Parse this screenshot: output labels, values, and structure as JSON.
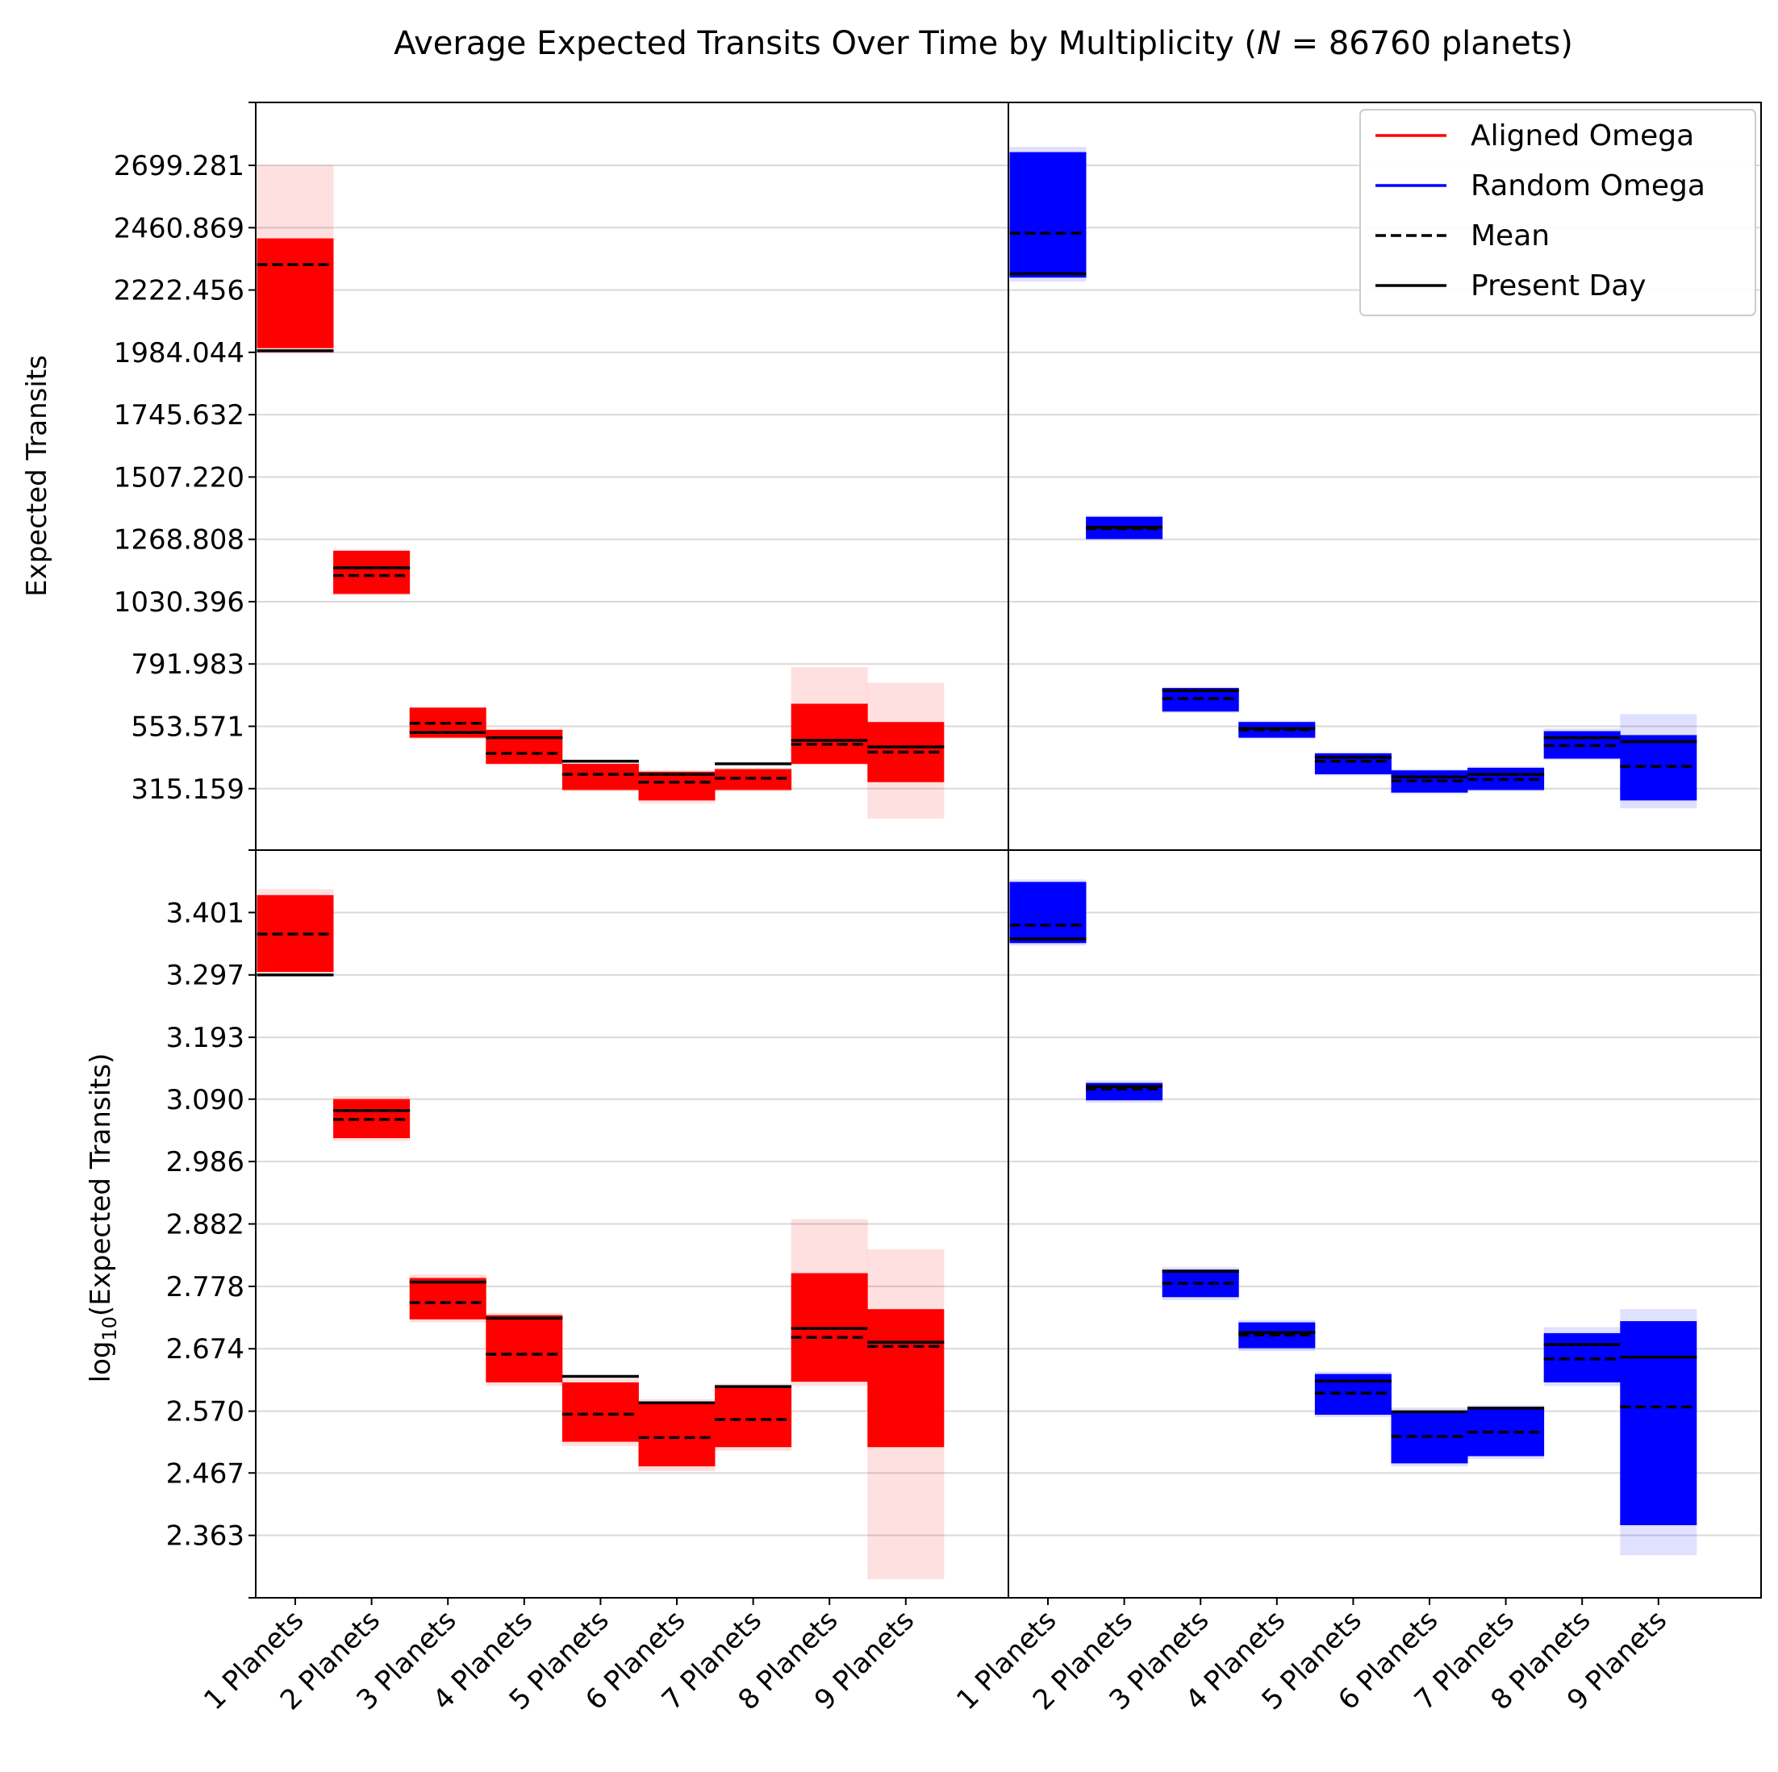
{
  "chart_data": {
    "type": "bar",
    "title_main": "Average Expected Transits Over Time by Multiplicity (",
    "title_n_symbol": "N",
    "title_n_rest": " = 86760 planets)",
    "categories": [
      "1 Planets",
      "2 Planets",
      "3 Planets",
      "4 Planets",
      "5 Planets",
      "6 Planets",
      "7 Planets",
      "8 Planets",
      "9 Planets"
    ],
    "legend": {
      "placement": "top-right",
      "entries": [
        {
          "label": "Aligned Omega",
          "style": "line",
          "color": "#ff0000"
        },
        {
          "label": "Random Omega",
          "style": "line",
          "color": "#0000ff"
        },
        {
          "label": "Mean",
          "style": "dashed",
          "color": "#000000"
        },
        {
          "label": "Present Day",
          "style": "line",
          "color": "#000000"
        }
      ]
    },
    "panels": [
      {
        "id": "top",
        "ylabel_main": "Expected Transits",
        "ylabel_log": false,
        "ylim": [
          80,
          2940
        ],
        "yticks": [
          "2699.281",
          "2460.869",
          "2222.456",
          "1984.044",
          "1745.632",
          "1507.220",
          "1268.808",
          "1030.396",
          "791.983",
          "553.571",
          "315.159"
        ],
        "grid": true,
        "series": [
          {
            "name": "Aligned Omega",
            "color": "#ff0000",
            "solid_low": [
              2000,
              1060,
              510,
              410,
              310,
              270,
              310,
              410,
              340
            ],
            "solid_high": [
              2420,
              1225,
              625,
              540,
              410,
              380,
              390,
              640,
              570
            ],
            "faint_low": [
              1980,
              1055,
              505,
              405,
              305,
              260,
              305,
              405,
              200
            ],
            "faint_high": [
              2700,
              1230,
              628,
              545,
              415,
              385,
              395,
              780,
              720
            ],
            "mean": [
              2320,
              1130,
              565,
              450,
              370,
              340,
              355,
              485,
              455
            ],
            "present": [
              1990,
              1160,
              530,
              510,
              420,
              370,
              410,
              500,
              475
            ]
          },
          {
            "name": "Random Omega",
            "color": "#0000ff",
            "solid_low": [
              2270,
              1270,
              610,
              510,
              370,
              300,
              310,
              430,
              270
            ],
            "solid_high": [
              2750,
              1355,
              700,
              570,
              450,
              385,
              395,
              535,
              520
            ],
            "faint_low": [
              2255,
              1265,
              605,
              505,
              365,
              295,
              305,
              425,
              240
            ],
            "faint_high": [
              2770,
              1360,
              705,
              575,
              455,
              390,
              400,
              545,
              600
            ],
            "mean": [
              2440,
              1310,
              660,
              540,
              420,
              345,
              350,
              480,
              400
            ],
            "present": [
              2285,
              1315,
              690,
              545,
              435,
              360,
              370,
              510,
              495
            ]
          }
        ]
      },
      {
        "id": "bottom",
        "ylabel_main": "log",
        "ylabel_sub": "10",
        "ylabel_rest": "(Expected Transits)",
        "ylabel_log": true,
        "ylim": [
          2.259,
          3.505
        ],
        "yticks": [
          "3.401",
          "3.297",
          "3.193",
          "3.090",
          "2.986",
          "2.882",
          "2.778",
          "2.674",
          "2.570",
          "2.467",
          "2.363"
        ],
        "grid": true,
        "series": [
          {
            "name": "Aligned Omega",
            "color": "#ff0000",
            "solid_low": [
              3.302,
              3.025,
              2.723,
              2.618,
              2.519,
              2.478,
              2.51,
              2.619,
              2.51
            ],
            "solid_high": [
              3.43,
              3.09,
              2.792,
              2.73,
              2.618,
              2.583,
              2.61,
              2.8,
              2.74
            ],
            "faint_low": [
              3.296,
              3.02,
              2.718,
              2.612,
              2.512,
              2.47,
              2.504,
              2.612,
              2.29
            ],
            "faint_high": [
              3.44,
              3.095,
              2.798,
              2.734,
              2.624,
              2.59,
              2.616,
              2.89,
              2.84
            ],
            "mean": [
              3.365,
              3.056,
              2.751,
              2.665,
              2.565,
              2.526,
              2.556,
              2.693,
              2.678
            ],
            "present": [
              3.297,
              3.071,
              2.785,
              2.725,
              2.628,
              2.584,
              2.611,
              2.708,
              2.685
            ]
          },
          {
            "name": "Random Omega",
            "color": "#0000ff",
            "solid_low": [
              3.35,
              3.088,
              2.76,
              2.675,
              2.564,
              2.483,
              2.495,
              2.618,
              2.38
            ],
            "solid_high": [
              3.452,
              3.117,
              2.806,
              2.718,
              2.632,
              2.57,
              2.575,
              2.7,
              2.72
            ],
            "faint_low": [
              3.346,
              3.084,
              2.755,
              2.67,
              2.56,
              2.478,
              2.49,
              2.612,
              2.33
            ],
            "faint_high": [
              3.456,
              3.121,
              2.81,
              2.722,
              2.636,
              2.576,
              2.58,
              2.71,
              2.74
            ],
            "mean": [
              3.38,
              3.107,
              2.783,
              2.697,
              2.6,
              2.528,
              2.535,
              2.657,
              2.577
            ],
            "present": [
              3.357,
              3.111,
              2.803,
              2.701,
              2.62,
              2.569,
              2.575,
              2.681,
              2.66
            ]
          }
        ]
      }
    ]
  }
}
